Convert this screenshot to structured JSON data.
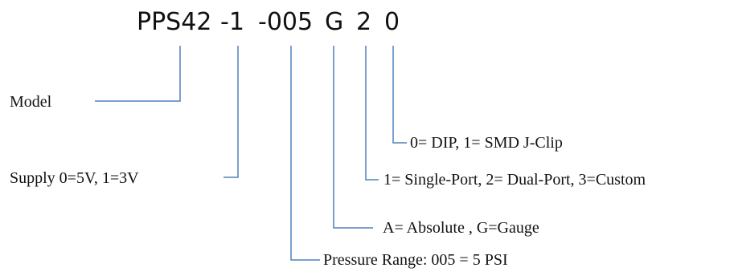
{
  "part_number": {
    "segments": [
      "PPS42",
      "-1",
      "-005",
      "G",
      "2",
      "0"
    ]
  },
  "fields": [
    {
      "id": "model",
      "label": "Model"
    },
    {
      "id": "supply",
      "label": "Supply 0=5V, 1=3V"
    },
    {
      "id": "pressure_range",
      "label": "Pressure Range: 005 = 5 PSI"
    },
    {
      "id": "pressure_type",
      "label": "A= Absolute , G=Gauge"
    },
    {
      "id": "port",
      "label": "1= Single-Port, 2= Dual-Port, 3=Custom"
    },
    {
      "id": "package",
      "label": "0= DIP, 1= SMD J-Clip"
    }
  ],
  "colors": {
    "connector_line": "#4f81bd",
    "text": "#111111"
  }
}
